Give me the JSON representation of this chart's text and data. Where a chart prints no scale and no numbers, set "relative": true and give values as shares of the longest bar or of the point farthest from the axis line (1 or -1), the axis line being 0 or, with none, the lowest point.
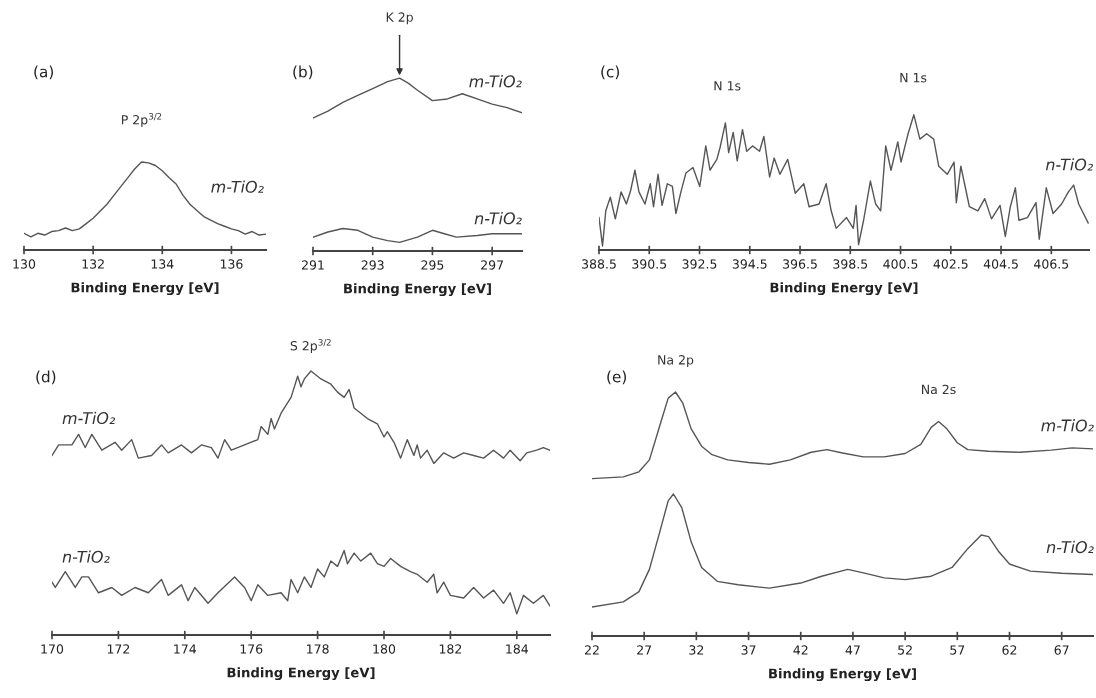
{
  "chart_data": [
    {
      "type": "line",
      "title": "(a)",
      "xlabel": "Binding Energy [eV]",
      "relative": true,
      "xlim": [
        130,
        137
      ],
      "xticks": [
        130,
        132,
        134,
        136
      ],
      "annotations": [
        {
          "text": "P 2p$^{3/2}$",
          "x": 133.4,
          "y": 1.0
        }
      ],
      "series": [
        {
          "name": "m-TiO₂",
          "color": "#555555",
          "x": [
            130.0,
            130.2,
            130.4,
            130.6,
            130.8,
            131.0,
            131.2,
            131.4,
            131.6,
            131.8,
            132.0,
            132.2,
            132.4,
            132.6,
            132.8,
            133.0,
            133.2,
            133.4,
            133.6,
            133.8,
            134.0,
            134.2,
            134.4,
            134.6,
            134.8,
            135.0,
            135.2,
            135.4,
            135.6,
            135.8,
            136.0,
            136.2,
            136.4,
            136.6,
            136.8,
            137.0
          ],
          "values": [
            0.19,
            0.15,
            0.19,
            0.17,
            0.21,
            0.22,
            0.25,
            0.22,
            0.24,
            0.3,
            0.36,
            0.44,
            0.52,
            0.62,
            0.72,
            0.82,
            0.92,
            1.0,
            0.99,
            0.96,
            0.9,
            0.82,
            0.75,
            0.62,
            0.52,
            0.45,
            0.38,
            0.34,
            0.3,
            0.27,
            0.24,
            0.22,
            0.18,
            0.21,
            0.17,
            0.18
          ]
        }
      ]
    },
    {
      "type": "line",
      "title": "(b)",
      "xlabel": "Binding Energy [eV]",
      "relative": true,
      "xlim": [
        291,
        298
      ],
      "xticks": [
        291,
        293,
        295,
        297
      ],
      "annotations": [
        {
          "text": "K 2p",
          "x": 293.9,
          "y": 1.0
        }
      ],
      "series": [
        {
          "name": "m-TiO₂",
          "color": "#555555",
          "x": [
            291,
            291.5,
            292,
            292.5,
            293,
            293.5,
            293.9,
            294.2,
            294.5,
            295.0,
            295.5,
            296.0,
            296.5,
            297,
            297.5,
            298
          ],
          "values": [
            0.77,
            0.81,
            0.86,
            0.9,
            0.94,
            0.98,
            1.0,
            0.97,
            0.93,
            0.87,
            0.88,
            0.91,
            0.88,
            0.85,
            0.83,
            0.8
          ]
        },
        {
          "name": "n-TiO₂",
          "color": "#555555",
          "x": [
            291,
            291.5,
            292,
            292.5,
            293,
            293.5,
            293.9,
            294.5,
            295,
            295.4,
            295.8,
            296.5,
            297,
            298
          ],
          "values": [
            0.08,
            0.11,
            0.13,
            0.12,
            0.08,
            0.06,
            0.05,
            0.08,
            0.12,
            0.1,
            0.08,
            0.09,
            0.1,
            0.1
          ]
        }
      ]
    },
    {
      "type": "line",
      "title": "(c)",
      "xlabel": "Binding Energy [eV]",
      "relative": true,
      "xlim": [
        388.5,
        408
      ],
      "xticks": [
        388.5,
        390.5,
        392.5,
        394.5,
        396.5,
        398.5,
        400.5,
        402.5,
        404.5,
        406.5
      ],
      "annotations": [
        {
          "text": "N 1s",
          "x": 393.6,
          "y": 0.94
        },
        {
          "text": "N 1s",
          "x": 401.0,
          "y": 1.0
        }
      ],
      "series": [
        {
          "name": "n-TiO₂",
          "color": "#555555",
          "x": [
            388.5,
            388.64,
            388.77,
            388.95,
            389.15,
            389.38,
            389.59,
            389.76,
            389.93,
            390.09,
            390.33,
            390.54,
            390.67,
            390.85,
            391.01,
            391.22,
            391.42,
            391.56,
            391.76,
            391.96,
            392.24,
            392.51,
            392.75,
            392.92,
            393.19,
            393.32,
            393.53,
            393.66,
            393.84,
            394.0,
            394.21,
            394.38,
            394.61,
            394.89,
            395.06,
            395.29,
            395.47,
            395.7,
            396.01,
            396.31,
            396.65,
            396.86,
            397.26,
            397.54,
            397.74,
            397.94,
            398.35,
            398.62,
            398.73,
            398.83,
            399.03,
            399.3,
            399.51,
            399.71,
            399.91,
            400.12,
            400.39,
            400.52,
            400.8,
            401.03,
            401.27,
            401.54,
            401.82,
            402.02,
            402.36,
            402.63,
            402.72,
            402.9,
            403.24,
            403.58,
            403.85,
            404.12,
            404.46,
            404.67,
            404.87,
            405.07,
            405.21,
            405.55,
            405.89,
            406.02,
            406.3,
            406.57,
            406.91,
            407.18,
            407.39,
            407.59,
            407.97
          ],
          "values": [
            0.24,
            0.03,
            0.29,
            0.39,
            0.23,
            0.43,
            0.34,
            0.44,
            0.59,
            0.43,
            0.34,
            0.49,
            0.32,
            0.56,
            0.33,
            0.49,
            0.47,
            0.27,
            0.43,
            0.57,
            0.61,
            0.47,
            0.77,
            0.59,
            0.67,
            0.76,
            0.94,
            0.72,
            0.87,
            0.66,
            0.89,
            0.73,
            0.77,
            0.73,
            0.84,
            0.54,
            0.68,
            0.56,
            0.67,
            0.42,
            0.49,
            0.32,
            0.34,
            0.49,
            0.29,
            0.16,
            0.24,
            0.16,
            0.33,
            0.04,
            0.22,
            0.51,
            0.34,
            0.29,
            0.77,
            0.59,
            0.8,
            0.65,
            0.86,
            1.0,
            0.82,
            0.86,
            0.82,
            0.62,
            0.56,
            0.65,
            0.35,
            0.62,
            0.32,
            0.29,
            0.38,
            0.23,
            0.33,
            0.1,
            0.32,
            0.46,
            0.22,
            0.24,
            0.35,
            0.08,
            0.46,
            0.27,
            0.34,
            0.43,
            0.48,
            0.34,
            0.2
          ]
        }
      ]
    },
    {
      "type": "line",
      "title": "(d)",
      "xlabel": "Binding Energy [eV]",
      "relative": true,
      "xlim": [
        170,
        185
      ],
      "xticks": [
        170,
        172,
        174,
        176,
        178,
        180,
        182,
        184
      ],
      "annotations": [
        {
          "text": "S 2p$^{3/2}$",
          "x": 177.8,
          "y": 1.0
        }
      ],
      "series": [
        {
          "name": "m-TiO₂",
          "color": "#555555",
          "x": [
            170.0,
            170.2,
            170.6,
            170.8,
            171.0,
            171.2,
            171.5,
            171.9,
            172.1,
            172.4,
            172.6,
            173.0,
            173.3,
            173.5,
            173.9,
            174.2,
            174.5,
            174.8,
            175.0,
            175.2,
            175.4,
            175.8,
            176.2,
            176.3,
            176.5,
            176.6,
            176.7,
            176.9,
            177.2,
            177.4,
            177.5,
            177.6,
            177.8,
            178.1,
            178.4,
            178.6,
            178.8,
            178.95,
            179.1,
            179.5,
            179.8,
            180.0,
            180.1,
            180.3,
            180.5,
            180.7,
            180.9,
            181.0,
            181.1,
            181.3,
            181.5,
            181.8,
            182.1,
            182.4,
            182.7,
            183.0,
            183.3,
            183.6,
            183.8,
            184.1,
            184.3,
            184.6,
            184.8,
            185.0
          ],
          "values": [
            0.68,
            0.72,
            0.72,
            0.76,
            0.71,
            0.76,
            0.7,
            0.73,
            0.7,
            0.74,
            0.67,
            0.68,
            0.72,
            0.69,
            0.72,
            0.69,
            0.72,
            0.71,
            0.67,
            0.74,
            0.7,
            0.72,
            0.74,
            0.79,
            0.76,
            0.82,
            0.78,
            0.84,
            0.9,
            0.98,
            0.94,
            0.97,
            1.0,
            0.97,
            0.95,
            0.92,
            0.9,
            0.93,
            0.86,
            0.82,
            0.8,
            0.75,
            0.77,
            0.73,
            0.67,
            0.74,
            0.68,
            0.72,
            0.67,
            0.7,
            0.65,
            0.69,
            0.67,
            0.69,
            0.68,
            0.67,
            0.7,
            0.67,
            0.7,
            0.66,
            0.69,
            0.7,
            0.71,
            0.7
          ]
        },
        {
          "name": "n-TiO₂",
          "color": "#555555",
          "x": [
            170.0,
            170.1,
            170.4,
            170.7,
            170.9,
            171.1,
            171.4,
            171.8,
            172.1,
            172.5,
            172.9,
            173.3,
            173.5,
            173.9,
            174.1,
            174.3,
            174.7,
            175.0,
            175.5,
            175.8,
            176.0,
            176.2,
            176.5,
            176.9,
            177.1,
            177.2,
            177.4,
            177.6,
            177.8,
            178.0,
            178.2,
            178.4,
            178.6,
            178.8,
            178.9,
            179.1,
            179.3,
            179.6,
            179.8,
            180.0,
            180.2,
            180.5,
            180.8,
            181.0,
            181.3,
            181.5,
            181.6,
            181.8,
            182.0,
            182.4,
            182.7,
            183.0,
            183.3,
            183.6,
            183.8,
            184.0,
            184.2,
            184.5,
            184.8,
            185.0
          ],
          "values": [
            0.2,
            0.18,
            0.24,
            0.18,
            0.22,
            0.22,
            0.16,
            0.18,
            0.15,
            0.18,
            0.16,
            0.21,
            0.15,
            0.19,
            0.13,
            0.18,
            0.12,
            0.16,
            0.22,
            0.18,
            0.13,
            0.19,
            0.15,
            0.16,
            0.13,
            0.21,
            0.16,
            0.22,
            0.18,
            0.25,
            0.22,
            0.28,
            0.26,
            0.32,
            0.27,
            0.31,
            0.28,
            0.31,
            0.27,
            0.26,
            0.29,
            0.26,
            0.24,
            0.23,
            0.2,
            0.23,
            0.16,
            0.2,
            0.15,
            0.14,
            0.18,
            0.14,
            0.17,
            0.12,
            0.16,
            0.08,
            0.15,
            0.12,
            0.15,
            0.11
          ]
        }
      ]
    },
    {
      "type": "line",
      "title": "(e)",
      "xlabel": "Binding Energy [eV]",
      "relative": true,
      "xlim": [
        22,
        70
      ],
      "xticks": [
        22,
        27,
        32,
        37,
        42,
        47,
        52,
        57,
        62,
        67
      ],
      "annotations": [
        {
          "text": "Na 2p",
          "x": 30.0,
          "y": 1.0
        },
        {
          "text": "Na 2s",
          "x": 55.2,
          "y": 0.879
        }
      ],
      "series": [
        {
          "name": "m-TiO₂",
          "color": "#555555",
          "x": [
            22,
            25,
            26.5,
            27.5,
            28.5,
            29.3,
            30.0,
            30.7,
            31.5,
            32.5,
            33.5,
            35,
            37,
            39,
            41,
            43,
            44.5,
            46,
            48,
            50,
            52,
            53.5,
            54.5,
            55.2,
            56,
            57,
            58,
            60,
            63,
            66,
            68,
            70
          ],
          "values": [
            0.645,
            0.652,
            0.673,
            0.722,
            0.863,
            0.975,
            1.0,
            0.954,
            0.849,
            0.778,
            0.743,
            0.722,
            0.711,
            0.704,
            0.722,
            0.753,
            0.764,
            0.75,
            0.734,
            0.734,
            0.748,
            0.785,
            0.855,
            0.879,
            0.849,
            0.792,
            0.764,
            0.757,
            0.753,
            0.762,
            0.771,
            0.767
          ]
        },
        {
          "name": "n-TiO₂",
          "color": "#555555",
          "x": [
            22,
            25,
            26.5,
            27.5,
            28.5,
            29.3,
            29.8,
            30.6,
            31.5,
            32.5,
            34,
            36,
            39,
            42,
            44,
            46.5,
            48,
            50,
            52,
            54.5,
            56.5,
            58,
            59.3,
            60,
            61,
            62,
            64,
            67,
            70
          ],
          "values": [
            0.119,
            0.14,
            0.182,
            0.273,
            0.428,
            0.554,
            0.582,
            0.526,
            0.386,
            0.281,
            0.224,
            0.21,
            0.196,
            0.217,
            0.245,
            0.273,
            0.259,
            0.238,
            0.231,
            0.245,
            0.281,
            0.358,
            0.414,
            0.407,
            0.344,
            0.295,
            0.266,
            0.257,
            0.252
          ]
        }
      ]
    }
  ]
}
